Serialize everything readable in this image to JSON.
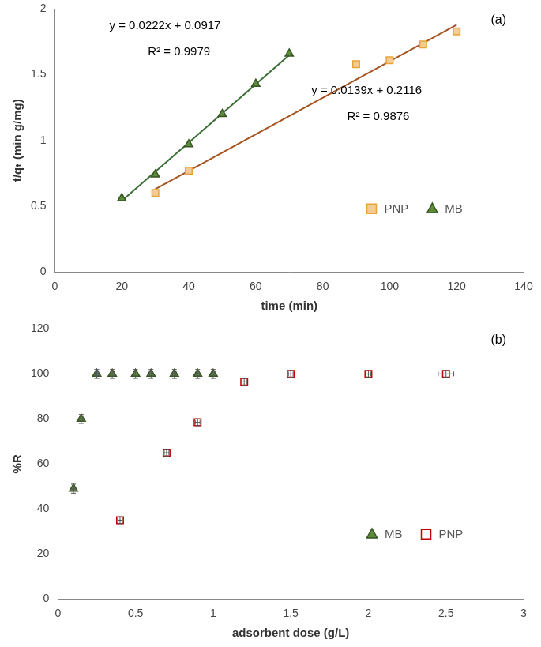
{
  "chart_data": [
    {
      "type": "scatter",
      "title": "(a)",
      "x_label": "time (min)",
      "y_label": "t/qₜ (min g/mg)",
      "xlim": [
        0,
        140
      ],
      "xticks": [
        0,
        20,
        40,
        60,
        80,
        100,
        120,
        140
      ],
      "ylim": [
        0,
        2
      ],
      "yticks": [
        0,
        0.5,
        1,
        1.5,
        2
      ],
      "grid": false,
      "legend": "lower right",
      "annotations": [
        "y = 0.0222x + 0.0917",
        "R² = 0.9979",
        "y = 0.0139x + 0.2116",
        "R² = 0.9876"
      ],
      "series": [
        {
          "name": "PNP",
          "color": "#e8a33a",
          "marker": "square",
          "x": [
            30,
            40,
            90,
            100,
            110,
            120
          ],
          "values": [
            0.6,
            0.77,
            1.58,
            1.61,
            1.73,
            1.83
          ],
          "trendline": {
            "x": [
              30,
              120
            ],
            "values": [
              0.63,
              1.88
            ],
            "color": "#a5541f"
          }
        },
        {
          "name": "MB",
          "color": "#5b8c3a",
          "marker": "triangle",
          "x": [
            20,
            30,
            40,
            50,
            60,
            70
          ],
          "values": [
            0.56,
            0.74,
            0.97,
            1.2,
            1.43,
            1.66
          ],
          "trendline": {
            "x": [
              20,
              70
            ],
            "values": [
              0.54,
              1.65
            ],
            "color": "#3b6e35"
          }
        }
      ]
    },
    {
      "type": "scatter",
      "title": "(b)",
      "x_label": "adsorbent dose (g/L)",
      "y_label": "%R",
      "xlim": [
        0,
        3
      ],
      "xticks": [
        0,
        0.5,
        1,
        1.5,
        2,
        2.5,
        3
      ],
      "ylim": [
        0,
        120
      ],
      "yticks": [
        0,
        20,
        40,
        60,
        80,
        100,
        120
      ],
      "grid": false,
      "legend": "lower right",
      "series": [
        {
          "name": "MB",
          "color": "#5b8c3a",
          "marker": "triangle",
          "x": [
            0.1,
            0.15,
            0.25,
            0.35,
            0.5,
            0.6,
            0.75,
            0.9,
            1.0
          ],
          "values": [
            49,
            80,
            100,
            100,
            100,
            100,
            100,
            100,
            100
          ],
          "x_errors": [
            0.01,
            0.01,
            0.01,
            0.01,
            0.01,
            0.01,
            0.01,
            0.01,
            0.01
          ],
          "y_errors": [
            2,
            2,
            2,
            2,
            2,
            2,
            2,
            2,
            2
          ]
        },
        {
          "name": "PNP",
          "color": "#c00000",
          "marker": "open_square",
          "x": [
            0.4,
            0.7,
            0.9,
            1.2,
            1.5,
            2.0,
            2.5
          ],
          "values": [
            35,
            65,
            78.5,
            96.5,
            100,
            100,
            100
          ],
          "x_errors": [
            0.015,
            0.015,
            0.015,
            0.015,
            0.015,
            0.015,
            0.05
          ],
          "y_errors": [
            1.5,
            1.5,
            1.5,
            1.5,
            1.5,
            1.5,
            1.5
          ]
        }
      ]
    }
  ]
}
